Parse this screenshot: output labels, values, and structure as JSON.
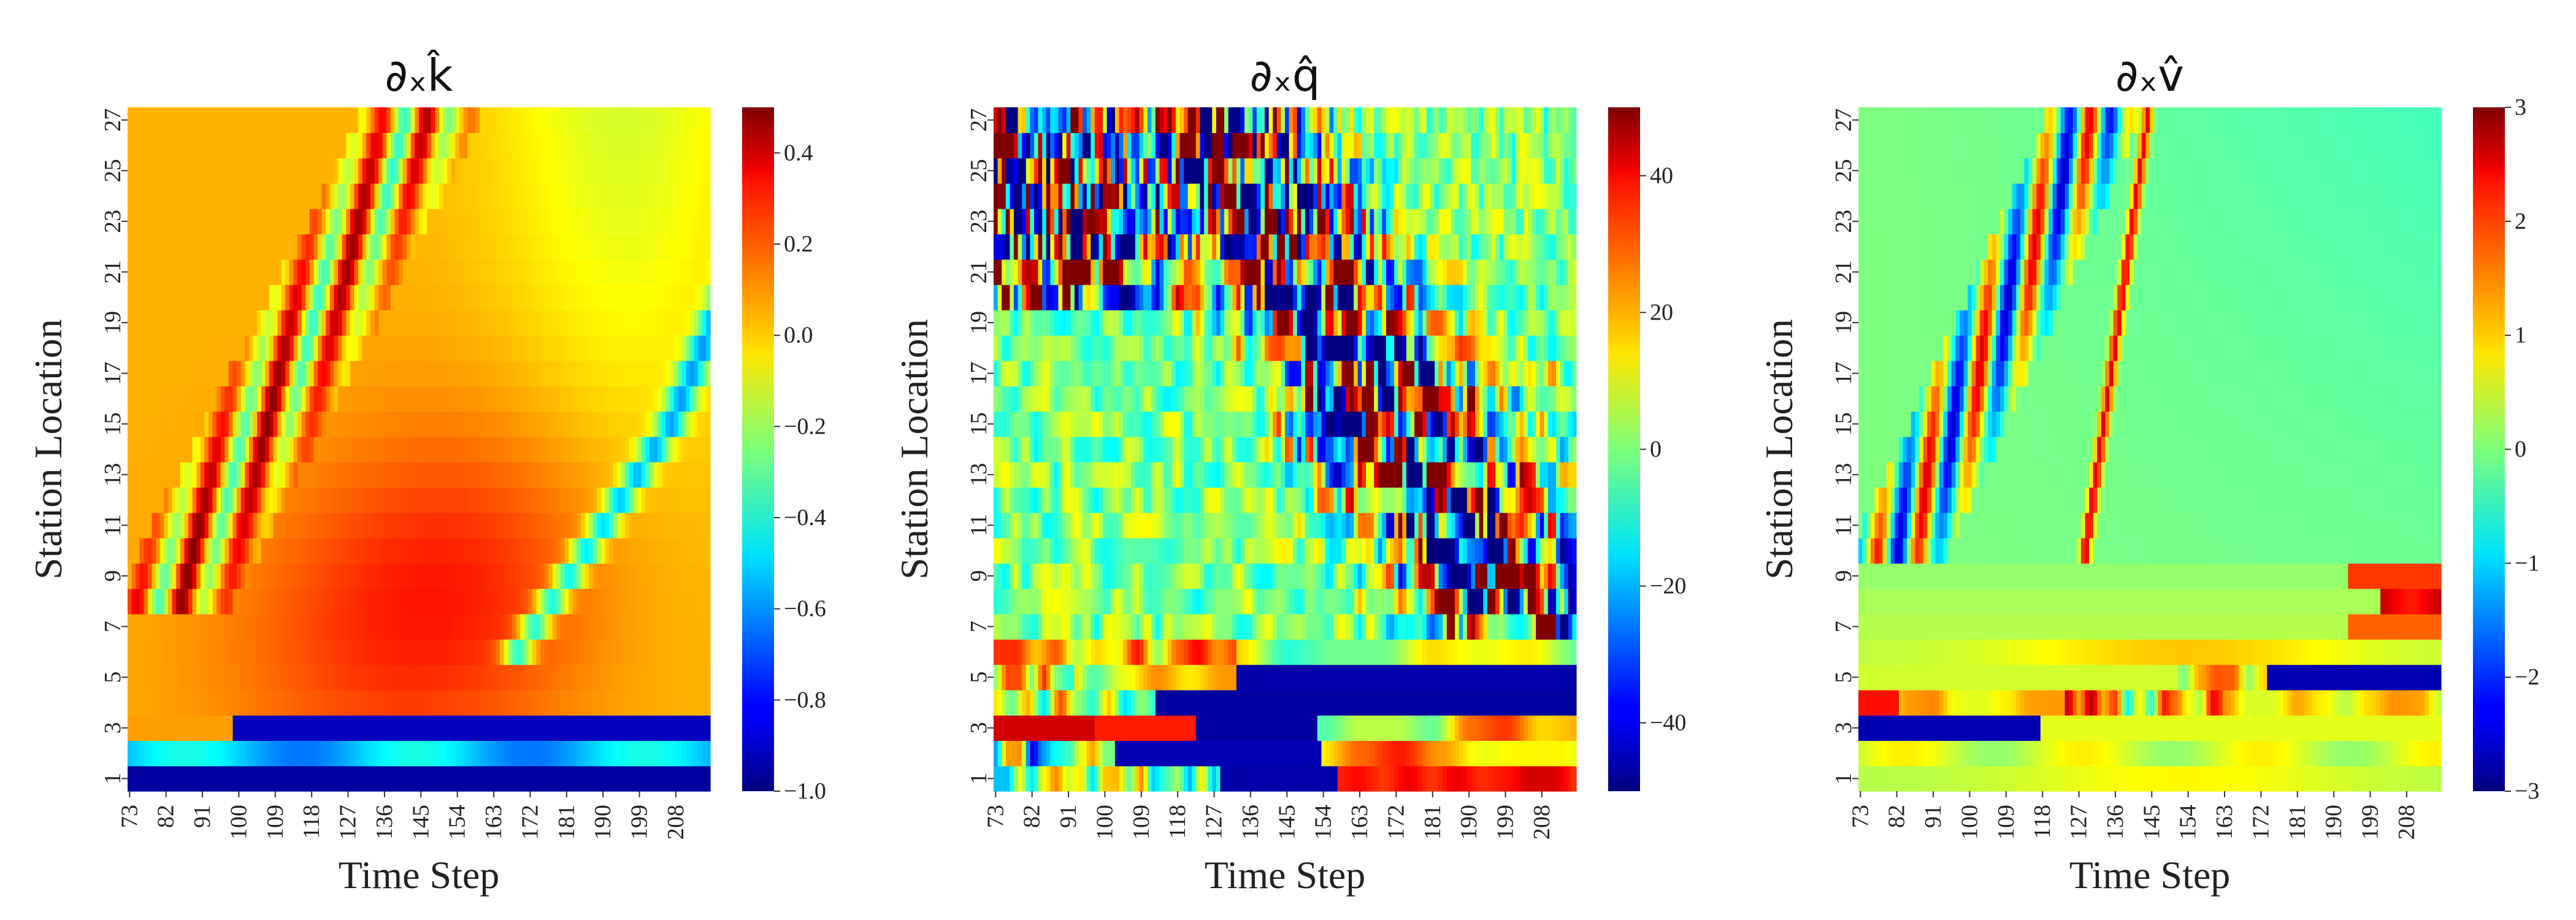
{
  "chart_data": [
    {
      "type": "heatmap",
      "title": "∂ₓk̂",
      "xlabel": "Time Step",
      "ylabel": "Station Location",
      "x_ticks": [
        "73",
        "82",
        "91",
        "100",
        "109",
        "118",
        "127",
        "136",
        "145",
        "154",
        "163",
        "172",
        "181",
        "190",
        "199",
        "208"
      ],
      "y_ticks": [
        "1",
        "3",
        "5",
        "7",
        "9",
        "11",
        "13",
        "15",
        "17",
        "19",
        "21",
        "23",
        "25",
        "27"
      ],
      "x_range": [
        73,
        216
      ],
      "y_range": [
        0,
        27
      ],
      "colormap": "jet",
      "colorbar": {
        "range": [
          -1.0,
          0.5
        ],
        "ticks": [
          "−1.0",
          "−0.8",
          "−0.6",
          "−0.4",
          "−0.2",
          "0.0",
          "0.2",
          "0.4"
        ],
        "tick_values": [
          -1.0,
          -0.8,
          -0.6,
          -0.4,
          -0.2,
          0.0,
          0.2,
          0.4
        ]
      },
      "pattern": "k"
    },
    {
      "type": "heatmap",
      "title": "∂ₓq̂",
      "xlabel": "Time Step",
      "ylabel": "Station Location",
      "x_ticks": [
        "73",
        "82",
        "91",
        "100",
        "109",
        "118",
        "127",
        "136",
        "145",
        "154",
        "163",
        "172",
        "181",
        "190",
        "199",
        "208"
      ],
      "y_ticks": [
        "1",
        "3",
        "5",
        "7",
        "9",
        "11",
        "13",
        "15",
        "17",
        "19",
        "21",
        "23",
        "25",
        "27"
      ],
      "x_range": [
        73,
        216
      ],
      "y_range": [
        0,
        27
      ],
      "colormap": "jet",
      "colorbar": {
        "range": [
          -50,
          50
        ],
        "ticks": [
          "−40",
          "−20",
          "0",
          "20",
          "40"
        ],
        "tick_values": [
          -40,
          -20,
          0,
          20,
          40
        ]
      },
      "pattern": "q"
    },
    {
      "type": "heatmap",
      "title": "∂ₓv̂",
      "xlabel": "Time Step",
      "ylabel": "Station Location",
      "x_ticks": [
        "73",
        "82",
        "91",
        "100",
        "109",
        "118",
        "127",
        "136",
        "145",
        "154",
        "163",
        "172",
        "181",
        "190",
        "199",
        "208"
      ],
      "y_ticks": [
        "1",
        "3",
        "5",
        "7",
        "9",
        "11",
        "13",
        "15",
        "17",
        "19",
        "21",
        "23",
        "25",
        "27"
      ],
      "x_range": [
        73,
        216
      ],
      "y_range": [
        0,
        27
      ],
      "colormap": "jet",
      "colorbar": {
        "range": [
          -3,
          3
        ],
        "ticks": [
          "−3",
          "−2",
          "−1",
          "0",
          "1",
          "2",
          "3"
        ],
        "tick_values": [
          -3,
          -2,
          -1,
          0,
          1,
          2,
          3
        ]
      },
      "pattern": "v"
    }
  ]
}
